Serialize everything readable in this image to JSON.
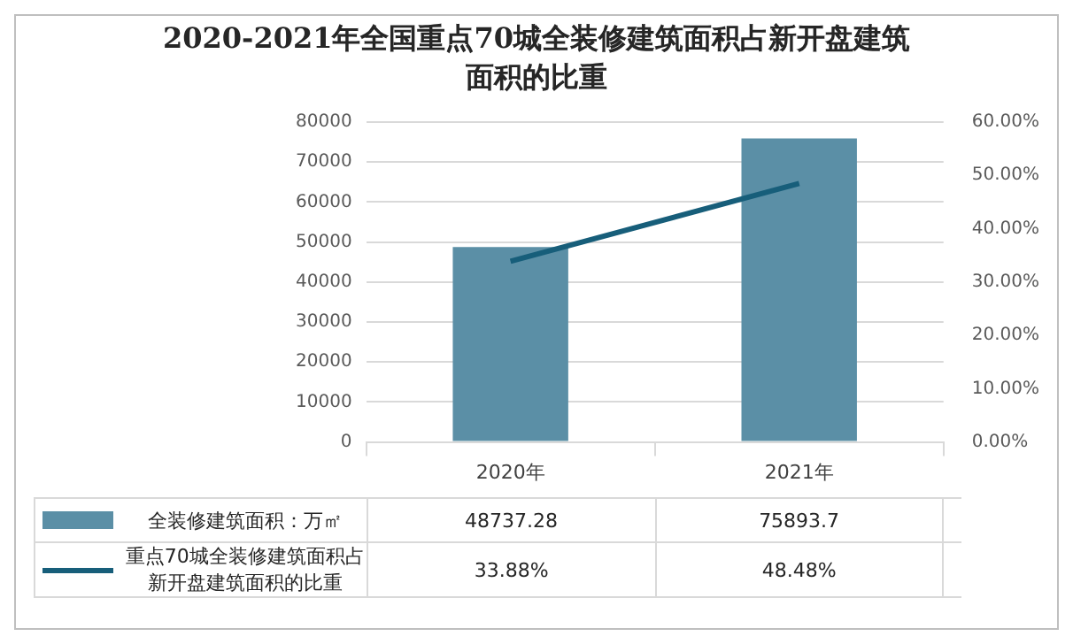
{
  "chart_data": {
    "type": "bar",
    "title": "2020-2021年全国重点70城全装修建筑面积占新开盘建筑面积的比重",
    "categories": [
      "2020年",
      "2021年"
    ],
    "series": [
      {
        "name": "全装修建筑面积：万㎡",
        "color": "#5b8fa6",
        "values": [
          48737.28,
          75893.7
        ],
        "value_labels": [
          "48737.28",
          "75893.7"
        ]
      },
      {
        "name": "重点70城全装修建筑面积占新开盘建筑面积的比重",
        "type": "line",
        "axis": "y2",
        "color": "#175e7a",
        "values": [
          33.88,
          48.48
        ],
        "value_labels": [
          "33.88%",
          "48.48%"
        ]
      }
    ],
    "ylim": [
      0,
      80000
    ],
    "yticks": [
      0,
      10000,
      20000,
      30000,
      40000,
      50000,
      60000,
      70000,
      80000
    ],
    "y2lim": [
      0,
      60
    ],
    "y2ticks": [
      {
        "value": 0,
        "label": "0.00%"
      },
      {
        "value": 10,
        "label": "10.00%"
      },
      {
        "value": 20,
        "label": "20.00%"
      },
      {
        "value": 30,
        "label": "30.00%"
      },
      {
        "value": 40,
        "label": "40.00%"
      },
      {
        "value": 50,
        "label": "50.00%"
      },
      {
        "value": 60,
        "label": "60.00%"
      }
    ],
    "grid": "y",
    "legend": "bottom",
    "marker": "none"
  }
}
